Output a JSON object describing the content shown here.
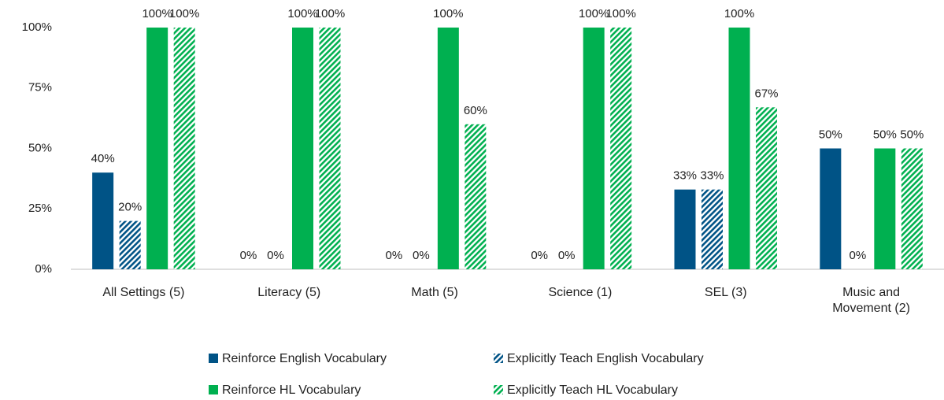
{
  "chart_data": {
    "type": "bar",
    "categories": [
      "All Settings (5)",
      "Literacy (5)",
      "Math (5)",
      "Science (1)",
      "SEL (3)",
      "Music and Movement (2)"
    ],
    "series": [
      {
        "name": "Reinforce English Vocabulary",
        "color": "#005386",
        "pattern": "solid",
        "values": [
          40,
          0,
          0,
          0,
          33,
          50
        ],
        "value_labels": [
          "40%",
          "0%",
          "0%",
          "0%",
          "33%",
          "50%"
        ]
      },
      {
        "name": "Explicitly Teach English Vocabulary",
        "color": "#005386",
        "pattern": "hatch",
        "values": [
          20,
          0,
          0,
          0,
          33,
          0
        ],
        "value_labels": [
          "20%",
          "0%",
          "0%",
          "0%",
          "33%",
          "0%"
        ]
      },
      {
        "name": "Reinforce HL Vocabulary",
        "color": "#00b050",
        "pattern": "solid",
        "values": [
          100,
          100,
          100,
          100,
          100,
          50
        ],
        "value_labels": [
          "100%",
          "100%",
          "100%",
          "100%",
          "100%",
          "50%"
        ]
      },
      {
        "name": "Explicitly Teach HL Vocabulary",
        "color": "#00b050",
        "pattern": "hatch",
        "values": [
          100,
          100,
          60,
          100,
          67,
          50
        ],
        "value_labels": [
          "100%",
          "100%",
          "60%",
          "100%",
          "67%",
          "50%"
        ]
      }
    ],
    "ylim": [
      0,
      100
    ],
    "yticks": [
      {
        "value": 0,
        "label": "0%"
      },
      {
        "value": 25,
        "label": "25%"
      },
      {
        "value": 50,
        "label": "50%"
      },
      {
        "value": 75,
        "label": "75%"
      },
      {
        "value": 100,
        "label": "100%"
      }
    ],
    "grid": false
  }
}
